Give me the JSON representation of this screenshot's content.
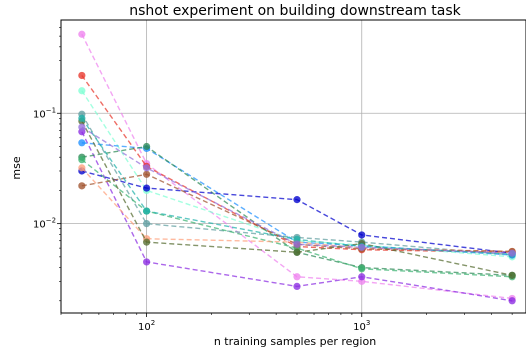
{
  "chart_data": {
    "type": "line",
    "title": "nshot experiment on building downstream task",
    "xlabel": "n training samples per region",
    "ylabel": "mse",
    "xscale": "log",
    "yscale": "log",
    "xlim": [
      40,
      5800
    ],
    "ylim": [
      0.00155,
      0.7
    ],
    "grid": true,
    "x_ticks": [
      {
        "value": 100,
        "base": "10",
        "exp": "2"
      },
      {
        "value": 1000,
        "base": "10",
        "exp": "3"
      }
    ],
    "y_ticks": [
      {
        "value": 0.01,
        "base": "10",
        "exp": "−2"
      },
      {
        "value": 0.1,
        "base": "10",
        "exp": "−1"
      }
    ],
    "x": [
      50,
      100,
      500,
      1000,
      5000
    ],
    "series": [
      {
        "color": "#ee82ee",
        "values": [
          0.52,
          0.035,
          0.0033,
          0.003,
          0.0021
        ]
      },
      {
        "color": "#e8352a",
        "values": [
          0.22,
          0.033,
          0.0062,
          0.0058,
          0.0055
        ]
      },
      {
        "color": "#7fffd4",
        "values": [
          0.16,
          0.02,
          0.007,
          0.0064,
          0.005
        ]
      },
      {
        "color": "#5f9ea0",
        "values": [
          0.098,
          0.01,
          0.0075,
          0.0068,
          0.0052
        ]
      },
      {
        "color": "#8a2be2",
        "values": [
          0.068,
          0.0045,
          0.0027,
          0.0033,
          0.002
        ]
      },
      {
        "color": "#1e90ff",
        "values": [
          0.054,
          0.048,
          0.0068,
          0.0063,
          0.0052
        ]
      },
      {
        "color": "#2e8b57",
        "values": [
          0.04,
          0.05,
          0.0055,
          0.004,
          0.0034
        ]
      },
      {
        "color": "#3cb371",
        "values": [
          0.038,
          0.013,
          0.006,
          0.0039,
          0.0033
        ]
      },
      {
        "color": "#0000cd",
        "values": [
          0.03,
          0.021,
          0.0165,
          0.0079,
          0.0054
        ]
      },
      {
        "color": "#ffa07a",
        "values": [
          0.032,
          0.0073,
          0.0068,
          0.006,
          0.0056
        ]
      },
      {
        "color": "#a0522d",
        "values": [
          0.022,
          0.028,
          0.0065,
          0.0059,
          0.0056
        ]
      },
      {
        "color": "#556b2f",
        "values": [
          0.085,
          0.0068,
          0.0055,
          0.0066,
          0.0034
        ]
      },
      {
        "color": "#20b2aa",
        "values": [
          0.09,
          0.013,
          0.0072,
          0.0062,
          0.0053
        ]
      },
      {
        "color": "#9370db",
        "values": [
          0.075,
          0.032,
          0.0065,
          0.0061,
          0.0054
        ]
      }
    ]
  }
}
